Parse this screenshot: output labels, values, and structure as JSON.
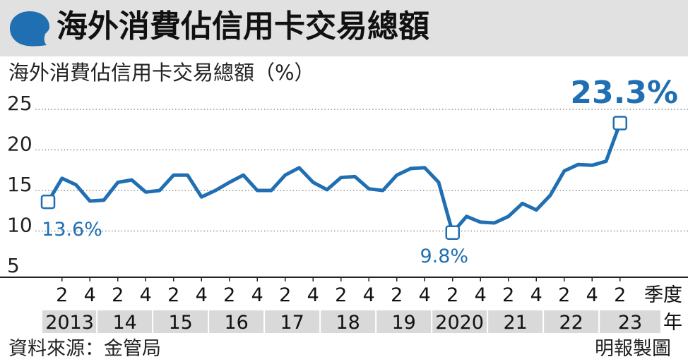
{
  "title": "海外消費佔信用卡交易總額",
  "source": "資料來源：金管局",
  "credit": "明報製圖",
  "chart_data": {
    "type": "line",
    "title": "海外消費佔信用卡交易總額",
    "ylabel": "海外消費佔信用卡交易總額（%）",
    "xlabel": "季度",
    "year_unit": "年",
    "ylim": [
      5,
      25
    ],
    "yticks": [
      "25",
      "20",
      "15",
      "10",
      "5"
    ],
    "grid": true,
    "color": "#1f6fb2",
    "quarter_ticks": [
      "2",
      "4",
      "2",
      "4",
      "2",
      "4",
      "2",
      "4",
      "2",
      "4",
      "2",
      "4",
      "2",
      "4",
      "2",
      "4",
      "2",
      "4",
      "2",
      "4",
      "2"
    ],
    "year_labels": [
      "2013",
      "14",
      "15",
      "16",
      "17",
      "18",
      "19",
      "2020",
      "21",
      "22",
      "23"
    ],
    "x": [
      "2013Q1",
      "2013Q2",
      "2013Q3",
      "2013Q4",
      "2014Q1",
      "2014Q2",
      "2014Q3",
      "2014Q4",
      "2015Q1",
      "2015Q2",
      "2015Q3",
      "2015Q4",
      "2016Q1",
      "2016Q2",
      "2016Q3",
      "2016Q4",
      "2017Q1",
      "2017Q2",
      "2017Q3",
      "2017Q4",
      "2018Q1",
      "2018Q2",
      "2018Q3",
      "2018Q4",
      "2019Q1",
      "2019Q2",
      "2019Q3",
      "2019Q4",
      "2020Q1",
      "2020Q2",
      "2020Q3",
      "2020Q4",
      "2021Q1",
      "2021Q2",
      "2021Q3",
      "2021Q4",
      "2022Q1",
      "2022Q2",
      "2022Q3",
      "2022Q4",
      "2023Q1",
      "2023Q2"
    ],
    "values": [
      13.6,
      16.5,
      15.7,
      13.7,
      13.8,
      16.0,
      16.3,
      14.8,
      15.0,
      16.9,
      16.9,
      14.2,
      15.0,
      16.0,
      16.9,
      15.0,
      15.0,
      16.9,
      17.8,
      16.0,
      15.1,
      16.6,
      16.7,
      15.2,
      15.0,
      16.9,
      17.7,
      17.8,
      16.0,
      9.8,
      11.8,
      11.1,
      11.0,
      11.8,
      13.4,
      12.6,
      14.4,
      17.4,
      18.2,
      18.1,
      18.6,
      23.3
    ],
    "annotations": [
      {
        "index": 0,
        "label": "13.6%"
      },
      {
        "index": 29,
        "label": "9.8%"
      },
      {
        "index": 41,
        "label": "23.3%"
      }
    ]
  }
}
